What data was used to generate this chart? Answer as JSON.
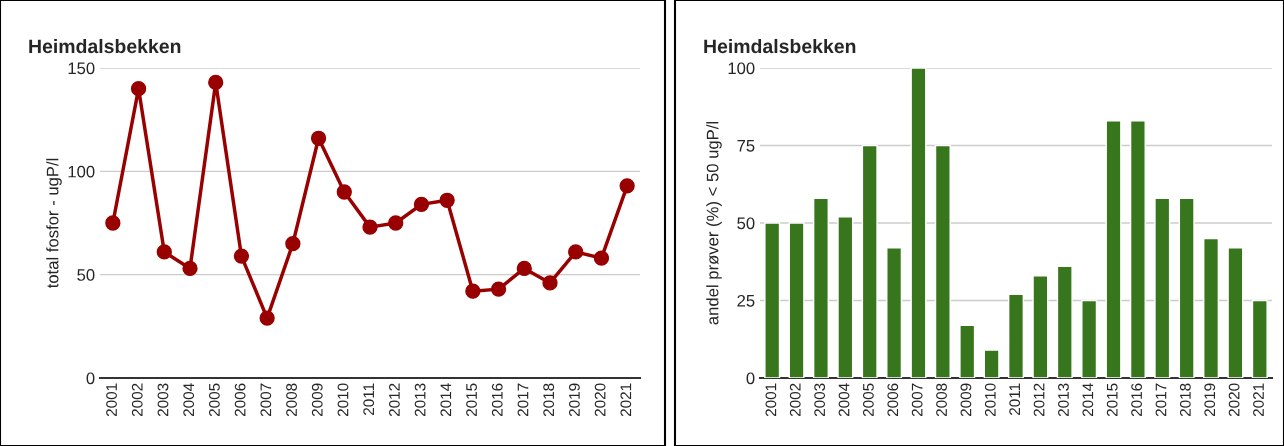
{
  "chart_data": [
    {
      "type": "line",
      "title": "Heimdalsbekken",
      "ylabel": "total fosfor - ugP/l",
      "categories": [
        "2001",
        "2002",
        "2003",
        "2004",
        "2005",
        "2006",
        "2007",
        "2008",
        "2009",
        "2010",
        "2011",
        "2012",
        "2013",
        "2014",
        "2015",
        "2016",
        "2017",
        "2018",
        "2019",
        "2020",
        "2021"
      ],
      "series": [
        {
          "color": "#990000",
          "values": [
            75,
            140,
            61,
            53,
            143,
            59,
            29,
            65,
            116,
            90,
            73,
            75,
            84,
            86,
            42,
            43,
            53,
            46,
            61,
            58,
            93
          ]
        }
      ],
      "ylim": [
        0,
        150
      ],
      "yticks": [
        0,
        50,
        100,
        150
      ],
      "grid": "y",
      "marker": "circle",
      "line_style": "solid"
    },
    {
      "type": "bar",
      "title": "Heimdalsbekken",
      "ylabel": "andel prøver (%) < 50 ugP/l",
      "categories": [
        "2001",
        "2002",
        "2003",
        "2004",
        "2005",
        "2006",
        "2007",
        "2008",
        "2009",
        "2010",
        "2011",
        "2012",
        "2013",
        "2014",
        "2015",
        "2016",
        "2017",
        "2018",
        "2019",
        "2020",
        "2021"
      ],
      "series": [
        {
          "color": "#38761d",
          "values": [
            50,
            50,
            58,
            52,
            75,
            42,
            100,
            75,
            17,
            9,
            27,
            33,
            36,
            25,
            83,
            83,
            58,
            58,
            45,
            42,
            25
          ]
        }
      ],
      "ylim": [
        0,
        100
      ],
      "yticks": [
        0,
        25,
        50,
        75,
        100
      ],
      "grid": "y"
    }
  ]
}
